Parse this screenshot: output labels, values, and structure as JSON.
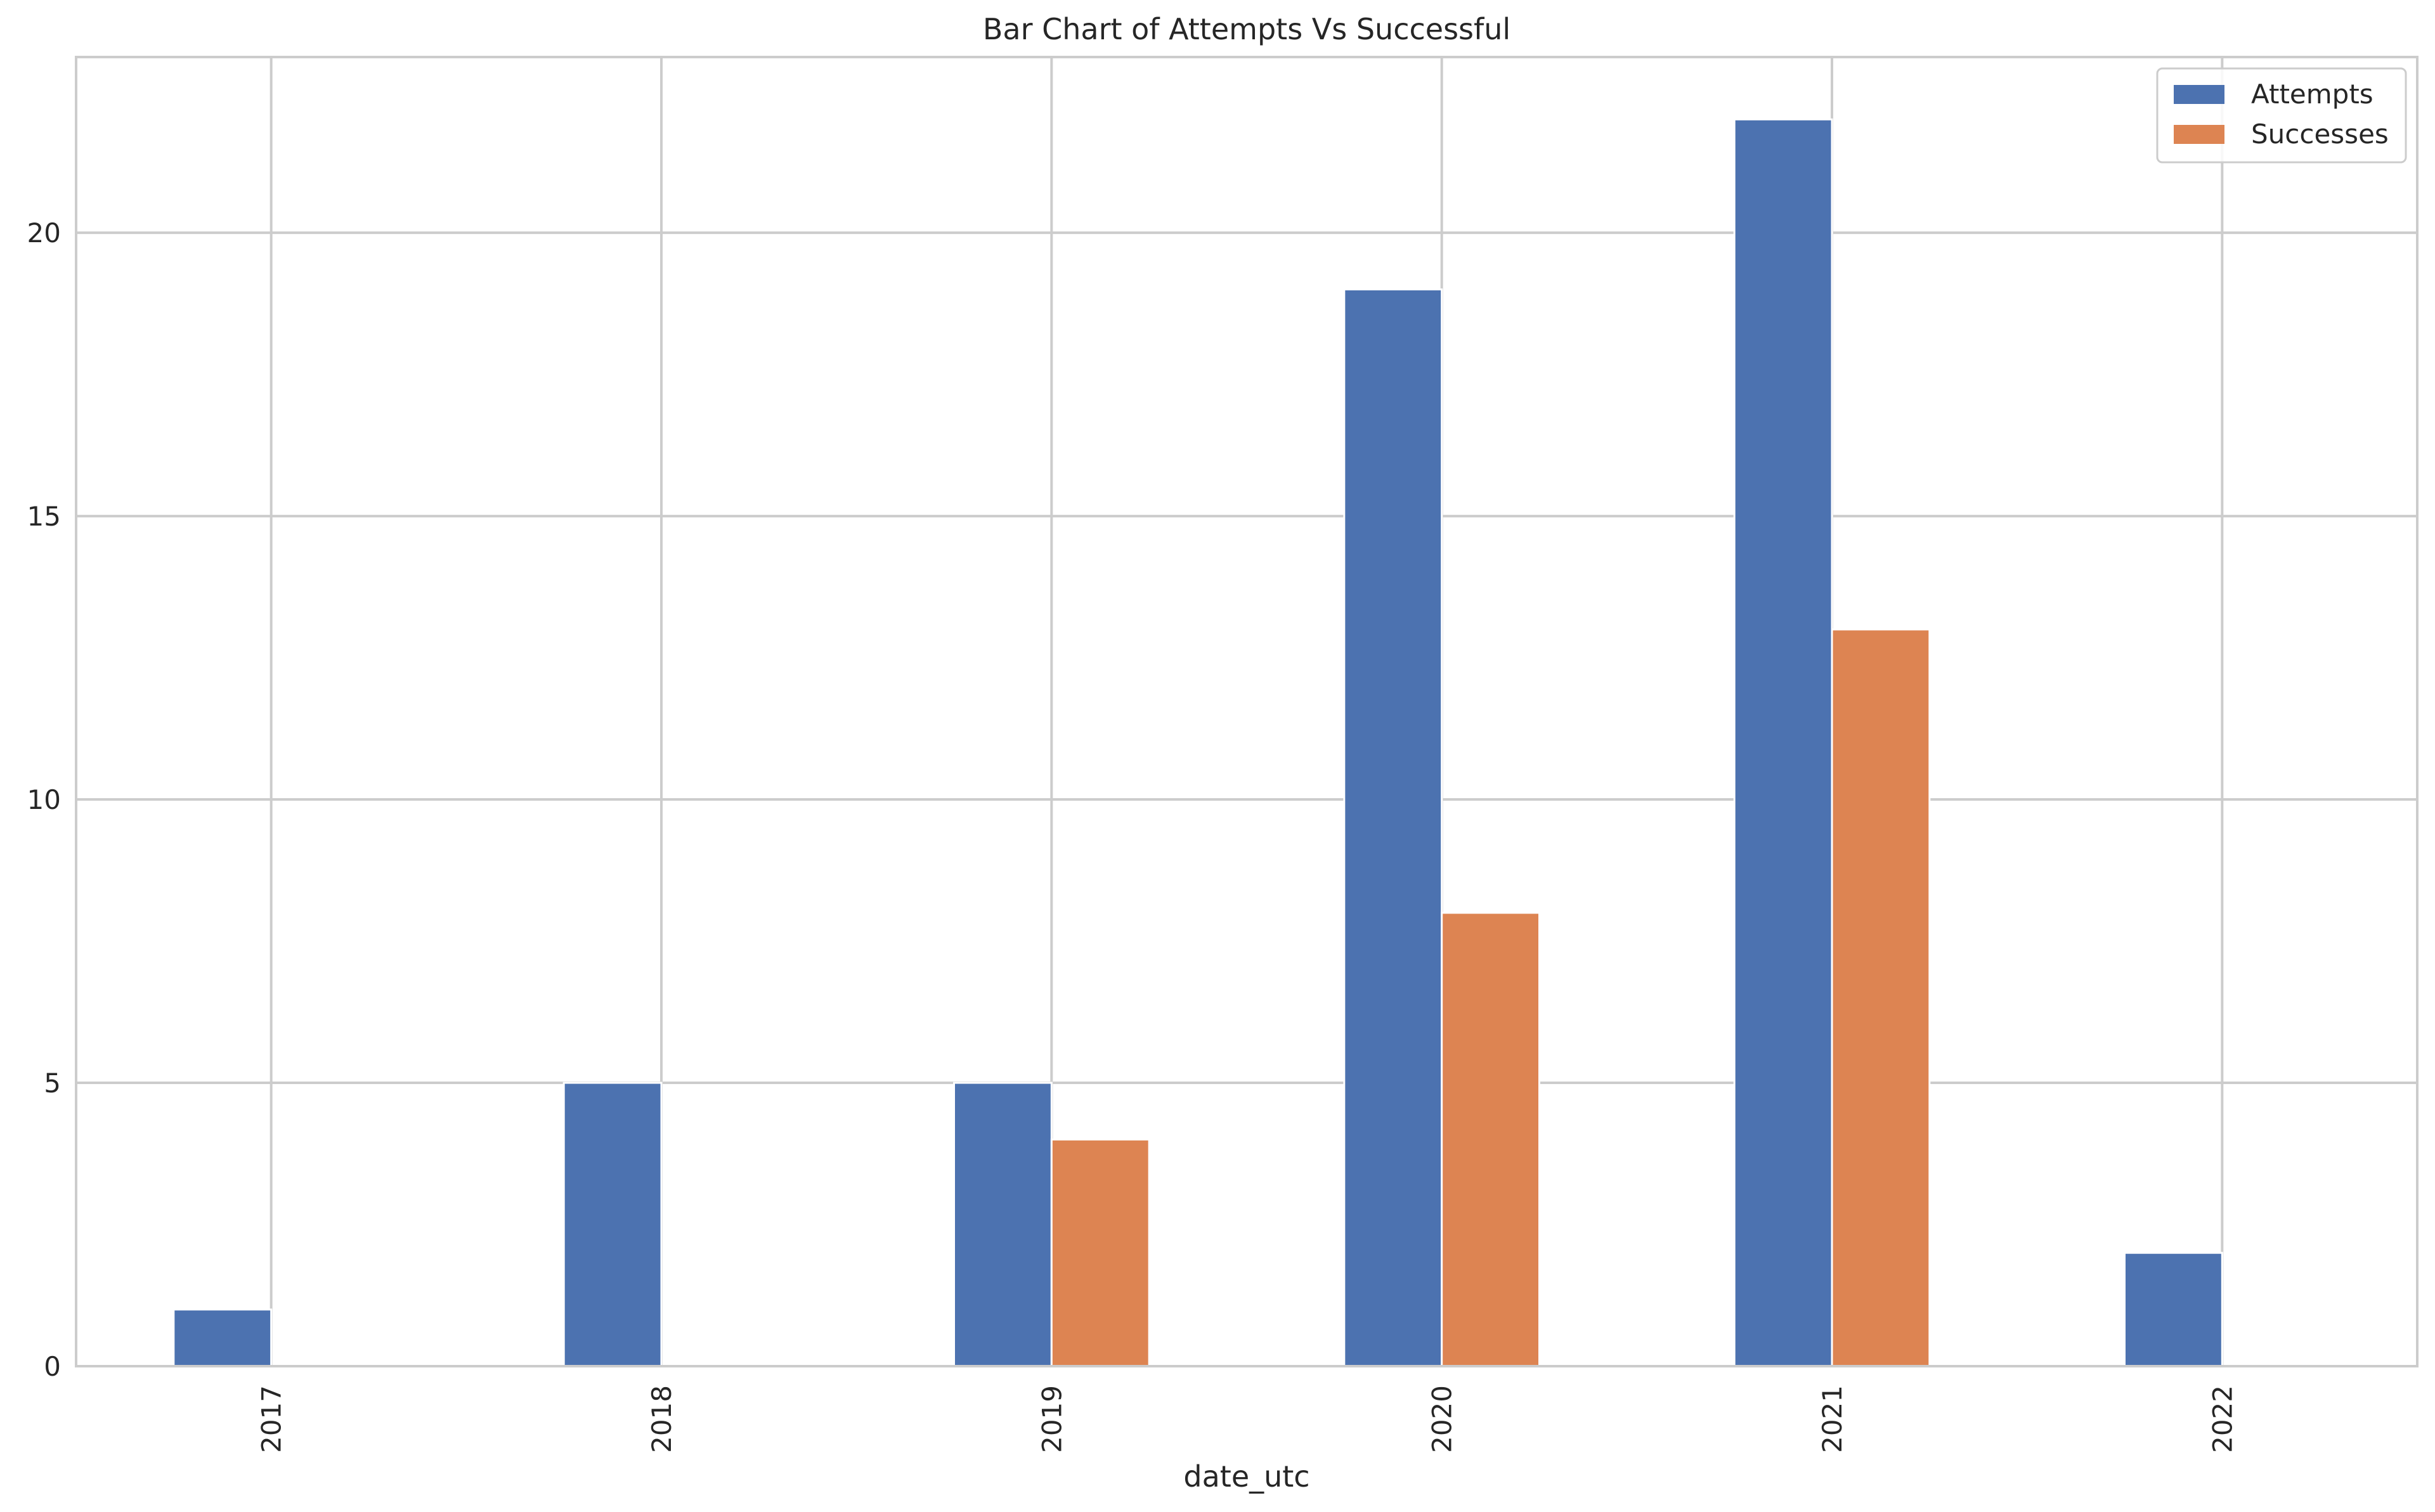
{
  "chart_data": {
    "type": "bar",
    "title": "Bar Chart of Attempts Vs Successful",
    "xlabel": "date_utc",
    "ylabel": "",
    "categories": [
      "2017",
      "2018",
      "2019",
      "2020",
      "2021",
      "2022"
    ],
    "series": [
      {
        "name": "Attempts",
        "color": "#4c72b0",
        "values": [
          1,
          5,
          5,
          19,
          22,
          2
        ]
      },
      {
        "name": "Successes",
        "color": "#dd8452",
        "values": [
          0,
          0,
          4,
          8,
          13,
          0
        ]
      }
    ],
    "ylim": [
      0,
      23.1
    ],
    "yticks": [
      0,
      5,
      10,
      15,
      20
    ],
    "grid": true,
    "legend": "top-right",
    "xtick_rotation": 90
  }
}
